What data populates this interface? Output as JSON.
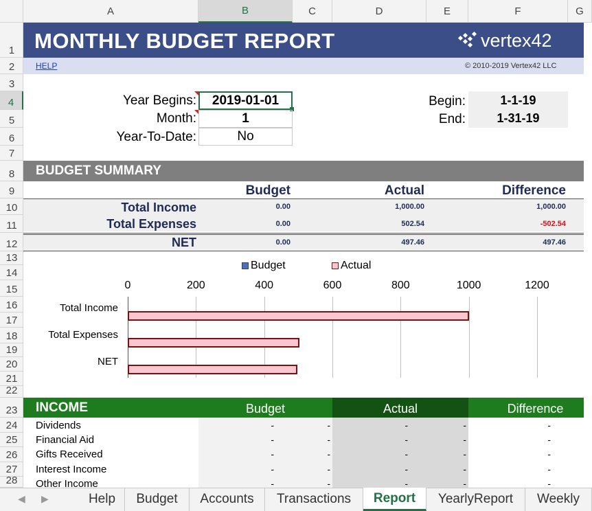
{
  "columns": [
    "A",
    "B",
    "C",
    "D",
    "E",
    "F",
    "G"
  ],
  "rows": [
    "1",
    "2",
    "3",
    "4",
    "5",
    "6",
    "7",
    "8",
    "9",
    "10",
    "11",
    "12",
    "13",
    "14",
    "15",
    "16",
    "17",
    "18",
    "19",
    "20",
    "21",
    "22",
    "23",
    "24",
    "25",
    "26",
    "27",
    "28"
  ],
  "header": {
    "title": "MONTHLY BUDGET REPORT",
    "logo_text": "vertex42",
    "help_link": "HELP",
    "copyright": "© 2010-2019 Vertex42 LLC"
  },
  "settings": {
    "year_begins_label": "Year Begins:",
    "year_begins_value": "2019-01-01",
    "month_label": "Month:",
    "month_value": "1",
    "ytd_label": "Year-To-Date:",
    "ytd_value": "No",
    "begin_label": "Begin:",
    "begin_value": "1-1-19",
    "end_label": "End:",
    "end_value": "1-31-19"
  },
  "summary": {
    "section_title": "BUDGET SUMMARY",
    "col_budget": "Budget",
    "col_actual": "Actual",
    "col_difference": "Difference",
    "rows": [
      {
        "label": "Total Income",
        "budget": "0.00",
        "actual": "1,000.00",
        "difference": "1,000.00"
      },
      {
        "label": "Total Expenses",
        "budget": "0.00",
        "actual": "502.54",
        "difference": "-502.54"
      },
      {
        "label": "NET",
        "budget": "0.00",
        "actual": "497.46",
        "difference": "497.46"
      }
    ]
  },
  "chart_data": {
    "type": "bar",
    "orientation": "horizontal",
    "categories": [
      "Total Income",
      "Total Expenses",
      "NET"
    ],
    "series": [
      {
        "name": "Budget",
        "values": [
          0,
          0,
          0
        ],
        "color": "#4f6fb5"
      },
      {
        "name": "Actual",
        "values": [
          1000,
          502.54,
          497.46
        ],
        "color": "#f9c7d0"
      }
    ],
    "xlim": [
      0,
      1200
    ],
    "ticks": [
      "0",
      "200",
      "400",
      "600",
      "800",
      "1000",
      "1200"
    ],
    "legend": "top",
    "grid": true
  },
  "income": {
    "section_title": "INCOME",
    "col_budget": "Budget",
    "col_actual": "Actual",
    "col_difference": "Difference",
    "rows": [
      {
        "label": "Dividends",
        "budget": "-",
        "mid": "-",
        "actual": "-",
        "mid2": "-",
        "difference": "-"
      },
      {
        "label": "Financial Aid",
        "budget": "-",
        "mid": "-",
        "actual": "-",
        "mid2": "-",
        "difference": "-"
      },
      {
        "label": "Gifts Received",
        "budget": "-",
        "mid": "-",
        "actual": "-",
        "mid2": "-",
        "difference": "-"
      },
      {
        "label": "Interest Income",
        "budget": "-",
        "mid": "-",
        "actual": "-",
        "mid2": "-",
        "difference": "-"
      },
      {
        "label": "Other Income",
        "budget": "-",
        "mid": "-",
        "actual": "-",
        "mid2": "-",
        "difference": "-"
      }
    ]
  },
  "tabs": [
    "Help",
    "Budget",
    "Accounts",
    "Transactions",
    "Report",
    "YearlyReport",
    "Weekly"
  ],
  "active_tab": "Report",
  "colors": {
    "title_band": "#3b4e87",
    "income_band": "#1e7b1e",
    "excel_green": "#217346"
  }
}
